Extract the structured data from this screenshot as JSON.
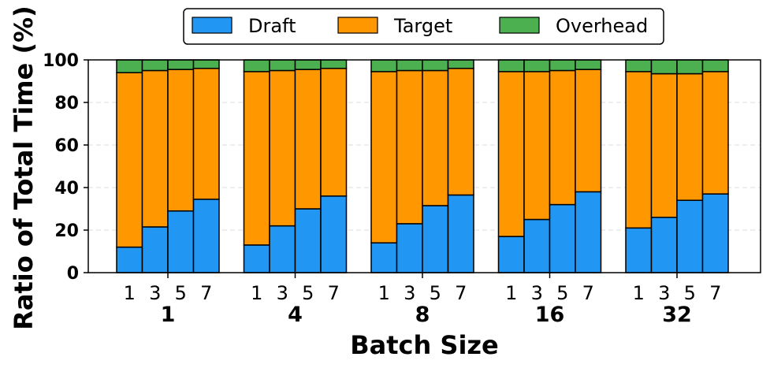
{
  "chart_data": {
    "type": "bar",
    "stacked": true,
    "title": "",
    "xlabel": "Batch Size",
    "ylabel": "Ratio of Total Time (%)",
    "ylim": [
      0,
      100
    ],
    "yticks": [
      "0",
      "20",
      "40",
      "60",
      "80",
      "100"
    ],
    "grid": "horizontal dashed",
    "legend": {
      "placement": "top-center",
      "entries": [
        "Draft",
        "Target",
        "Overhead"
      ]
    },
    "colors": {
      "Draft": "#2196F3",
      "Target": "#FF9800",
      "Overhead": "#4CAF50"
    },
    "groups": [
      {
        "label": "1",
        "sub_labels": [
          "1",
          "3",
          "5",
          "7"
        ],
        "draft": [
          12,
          21.5,
          29,
          34.5
        ],
        "target": [
          82,
          73.5,
          66.5,
          61.5
        ],
        "overhead": [
          6,
          5,
          4.5,
          4
        ]
      },
      {
        "label": "4",
        "sub_labels": [
          "1",
          "3",
          "5",
          "7"
        ],
        "draft": [
          13,
          22,
          30,
          36
        ],
        "target": [
          81.5,
          73,
          65.5,
          60
        ],
        "overhead": [
          5.5,
          5,
          4.5,
          4
        ]
      },
      {
        "label": "8",
        "sub_labels": [
          "1",
          "3",
          "5",
          "7"
        ],
        "draft": [
          14,
          23,
          31.5,
          36.5
        ],
        "target": [
          80.5,
          72,
          63.5,
          59.5
        ],
        "overhead": [
          5.5,
          5,
          5,
          4
        ]
      },
      {
        "label": "16",
        "sub_labels": [
          "1",
          "3",
          "5",
          "7"
        ],
        "draft": [
          17,
          25,
          32,
          38
        ],
        "target": [
          77.5,
          69.5,
          63,
          57.5
        ],
        "overhead": [
          5.5,
          5.5,
          5,
          4.5
        ]
      },
      {
        "label": "32",
        "sub_labels": [
          "1",
          "3",
          "5",
          "7"
        ],
        "draft": [
          21,
          26,
          34,
          37
        ],
        "target": [
          73.5,
          67.5,
          59.5,
          57.5
        ],
        "overhead": [
          5.5,
          6.5,
          6.5,
          5.5
        ]
      }
    ]
  }
}
